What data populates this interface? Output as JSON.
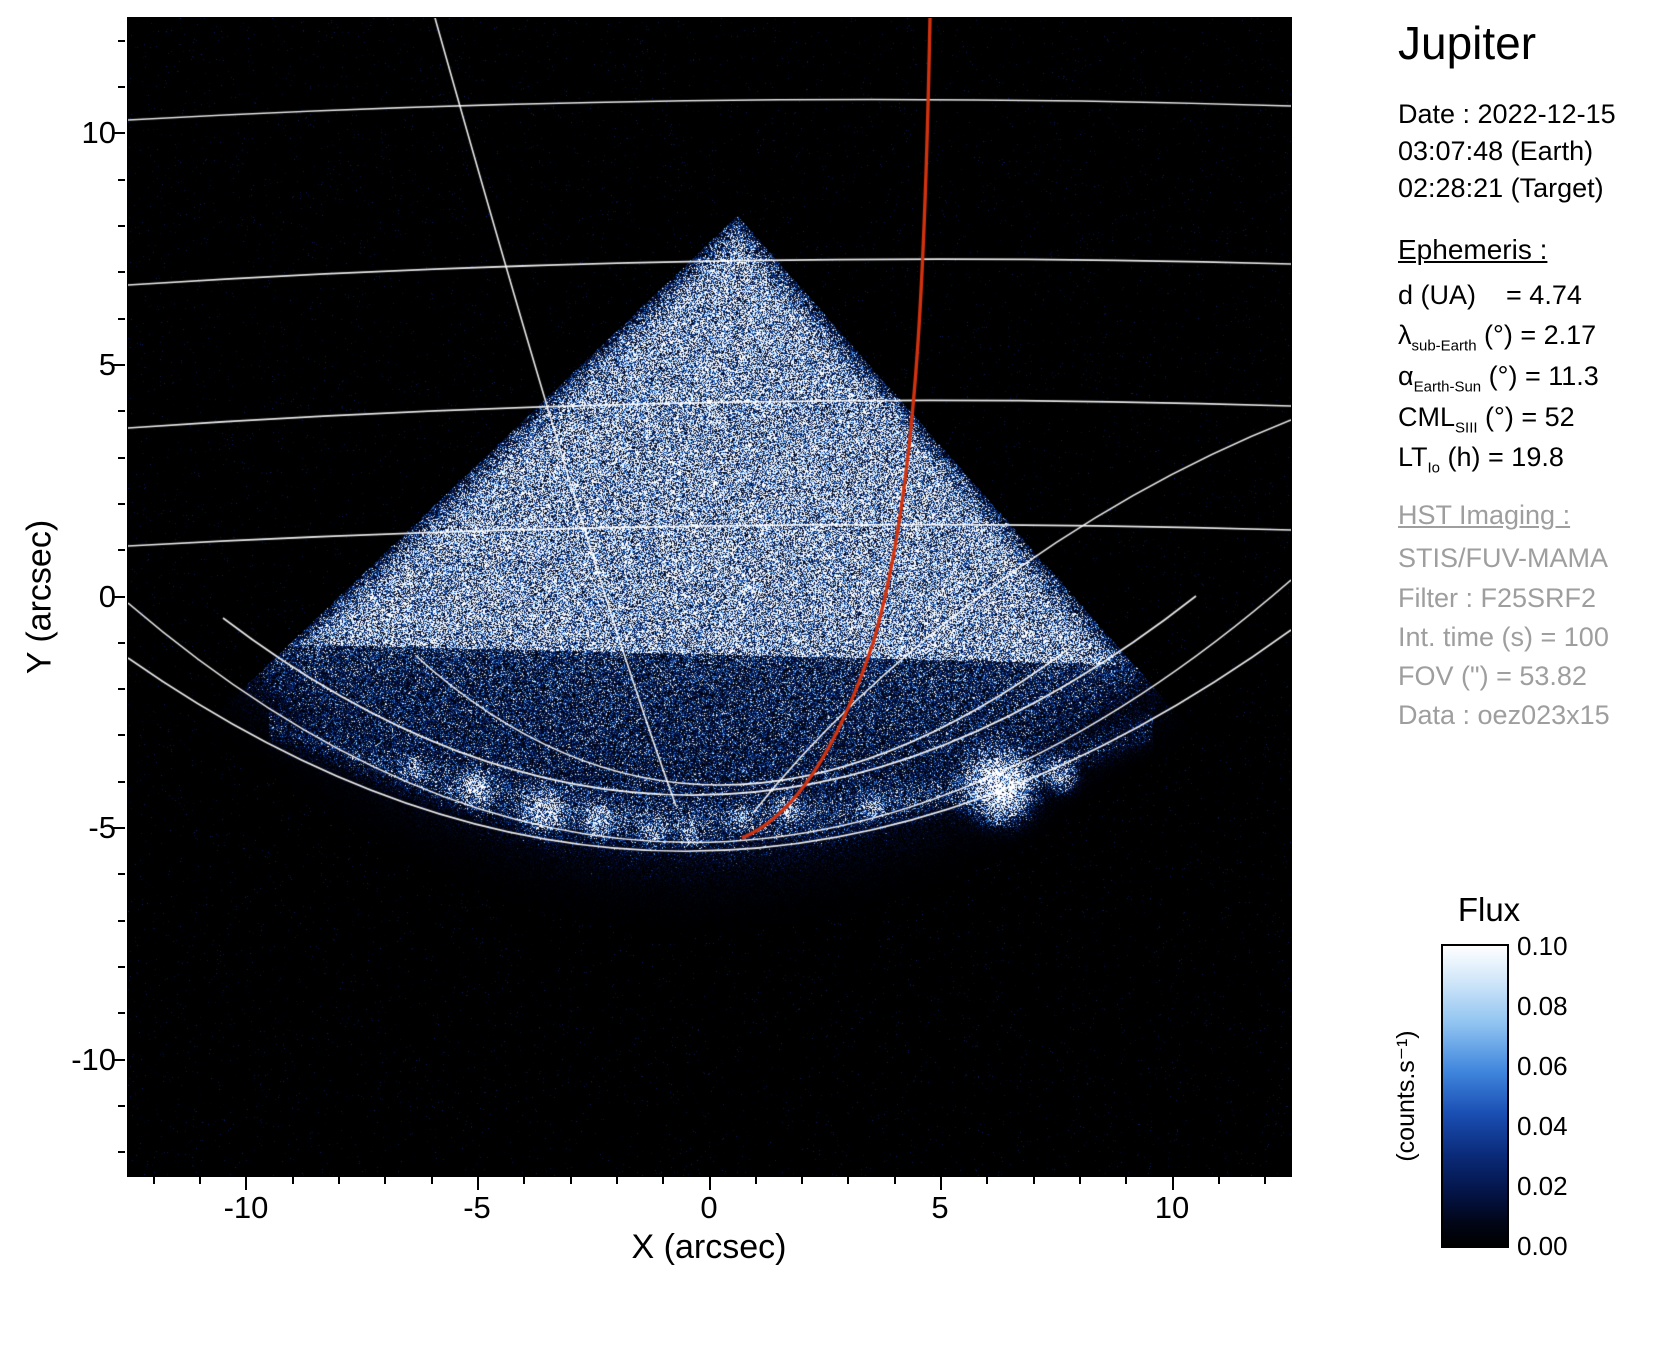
{
  "side": {
    "title": "Jupiter",
    "date_line1": "Date : 2022-12-15",
    "date_line2": "03:07:48 (Earth)",
    "date_line3": "02:28:21 (Target)",
    "ephemeris_heading": "Ephemeris :",
    "ephemeris": [
      {
        "sym": "d",
        "sub": "",
        "rest": " (UA)    = 4.74"
      },
      {
        "sym": "λ",
        "sub": "sub-Earth",
        "rest": " (°) = 2.17"
      },
      {
        "sym": "α",
        "sub": "Earth-Sun",
        "rest": " (°) = 11.3"
      },
      {
        "sym": "CML",
        "sub": "SIII",
        "rest": " (°) = 52"
      },
      {
        "sym": "LT",
        "sub": "Io",
        "rest": " (h) = 19.8"
      }
    ],
    "hst_heading": "HST Imaging :",
    "hst_lines": [
      "STIS/FUV-MAMA",
      "Filter : F25SRF2",
      "Int. time (s) = 100",
      "FOV (\") = 53.82",
      "Data : oez023x15"
    ]
  },
  "chart_data": {
    "type": "heatmap",
    "title": "Jupiter",
    "xlabel": "X (arcsec)",
    "ylabel": "Y (arcsec)",
    "xlim": [
      -12.55,
      12.55
    ],
    "ylim": [
      -12.55,
      12.55
    ],
    "x_ticks": [
      -10,
      -5,
      0,
      5,
      10
    ],
    "y_ticks": [
      10,
      5,
      0,
      -5,
      -10
    ],
    "grid": false,
    "colorbar": {
      "title": "Flux",
      "unit_label": "(counts.s⁻¹)",
      "ticks": [
        "0.10",
        "0.08",
        "0.06",
        "0.04",
        "0.02",
        "0.00"
      ],
      "min": 0.0,
      "max": 0.1,
      "colormap_stops": [
        "#000000",
        "#04103f",
        "#081e62",
        "#1c5cc0",
        "#5fa5e8",
        "#b9dbf6",
        "#ffffff"
      ]
    },
    "content": {
      "description": "HST STIS far-UV photon-count image of Jupiter: bright speckled emission cone with apex near (0.6, 8.2) arcsec, auroral arc of bright spots near y = -4.5 arcsec (brightest blob near x = 6 arcsec), white planetocentric coordinate grid curves, red satellite footprint track descending from top toward the auroral arc",
      "overlay_grid_color": "#ffffff",
      "overlay_track_color": "#d2330f"
    }
  }
}
